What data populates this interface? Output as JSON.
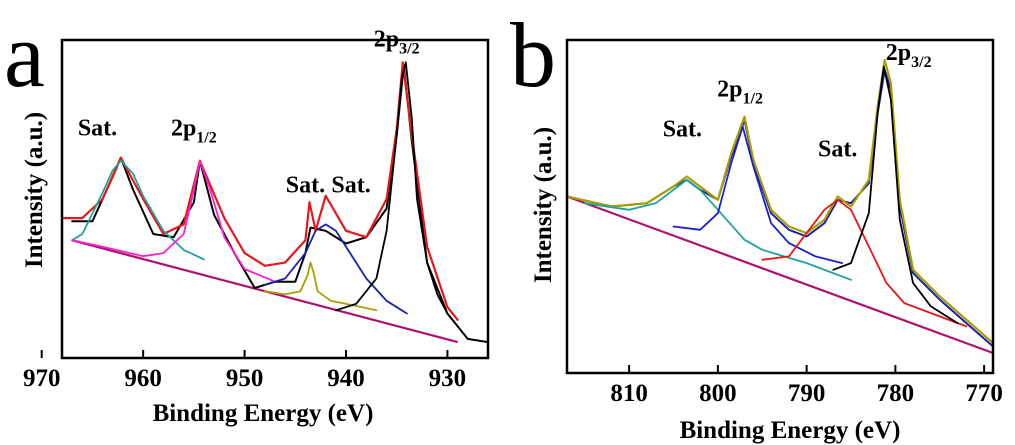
{
  "chart_data": [
    {
      "panel": "a",
      "type": "line",
      "xlabel": "Binding Energy (eV)",
      "ylabel": "Intensity (a.u.)",
      "xlim": [
        968,
        926
      ],
      "x_reversed": true,
      "ylim": [
        0,
        100
      ],
      "xticks": [
        970,
        960,
        950,
        940,
        930
      ],
      "yticks_shown": false,
      "grid": false,
      "legend": "none",
      "baseline": {
        "x": [
          967,
          929
        ],
        "y": [
          37,
          5
        ]
      },
      "series": [
        {
          "color": "#000000",
          "kind": "raw",
          "x": [
            967,
            965,
            963,
            962.2,
            961,
            959,
            957,
            955,
            954.4,
            953,
            951,
            949,
            947,
            945,
            944,
            943.5,
            942,
            940,
            938,
            936,
            935,
            934.3,
            933.5,
            932,
            930,
            928,
            926
          ],
          "y": [
            43,
            43,
            57,
            63,
            53,
            39,
            38,
            49,
            62,
            45,
            33,
            22,
            24,
            24,
            33,
            41,
            40,
            36,
            38,
            47,
            70,
            92,
            68,
            30,
            14,
            6,
            5
          ]
        },
        {
          "color": "#e8171c",
          "kind": "envelope",
          "x": [
            968,
            966,
            964,
            962.2,
            960,
            958,
            956,
            954.4,
            952,
            950,
            948,
            946,
            944,
            943.6,
            943,
            942,
            940,
            938,
            936,
            935,
            934.4,
            933.5,
            932,
            930,
            929
          ],
          "y": [
            44,
            44,
            50,
            63,
            50,
            39,
            42,
            62,
            44,
            33,
            29,
            30,
            37,
            49,
            40,
            51,
            40,
            38,
            50,
            72,
            93,
            70,
            35,
            16,
            12
          ]
        },
        {
          "color": "#21a29a",
          "kind": "Sat.",
          "x": [
            967,
            966,
            964,
            963,
            962.2,
            961,
            960,
            958,
            956,
            954
          ],
          "y": [
            37,
            39,
            52,
            59,
            62,
            58,
            51,
            40,
            34,
            31
          ]
        },
        {
          "color": "#ff1fd0",
          "kind": "2p1/2",
          "x": [
            967,
            964,
            960,
            958,
            956,
            955,
            954.4,
            953.5,
            952,
            950,
            947
          ],
          "y": [
            37,
            35,
            32,
            33,
            39,
            53,
            62,
            54,
            38,
            28,
            24
          ]
        },
        {
          "color": "#a7a000",
          "kind": "Sat.",
          "x": [
            948,
            946,
            944.5,
            943.8,
            943.5,
            943.2,
            942.8,
            941.5,
            940,
            937
          ],
          "y": [
            21,
            20,
            21,
            26,
            30,
            27,
            21,
            18,
            17,
            15
          ]
        },
        {
          "color": "#1a21a8",
          "kind": "Sat.",
          "x": [
            948,
            946,
            944,
            943,
            942,
            941,
            940,
            938,
            936,
            934
          ],
          "y": [
            23,
            25,
            33,
            40,
            42,
            40,
            35,
            25,
            18,
            14
          ]
        },
        {
          "color": "#000000",
          "kind": "2p3/2",
          "x": [
            941,
            939,
            937,
            936,
            935,
            934.5,
            934.1,
            933.5,
            933,
            932,
            931,
            930
          ],
          "y": [
            15,
            17,
            25,
            40,
            70,
            88,
            93,
            75,
            50,
            30,
            20,
            14
          ]
        }
      ],
      "annotations": [
        {
          "text": "Sat.",
          "x": 964.5,
          "y": 70
        },
        {
          "text": "2p",
          "sub": "1/2",
          "x": 955,
          "y": 70
        },
        {
          "text": "Sat.",
          "x": 944,
          "y": 52
        },
        {
          "text": "Sat.",
          "x": 939.5,
          "y": 52
        },
        {
          "text": "2p",
          "sub": "3/2",
          "x": 935,
          "y": 98
        }
      ]
    },
    {
      "panel": "b",
      "type": "line",
      "xlabel": "Binding Energy (eV)",
      "ylabel": "Intensity (a.u.)",
      "xlim": [
        817,
        769
      ],
      "x_reversed": true,
      "ylim": [
        0,
        100
      ],
      "xticks": [
        810,
        800,
        790,
        780,
        770
      ],
      "yticks_shown": false,
      "grid": false,
      "legend": "none",
      "baseline": {
        "x": [
          817,
          769
        ],
        "y": [
          53,
          6
        ]
      },
      "series": [
        {
          "color": "#1a21a8",
          "kind": "raw",
          "x": [
            817,
            812,
            808,
            805,
            803.5,
            802,
            800,
            798.5,
            797,
            796,
            794,
            792,
            790,
            788,
            786.5,
            785,
            783,
            782,
            781.2,
            780.5,
            779.5,
            778,
            775,
            772,
            769
          ],
          "y": [
            53,
            50,
            51,
            56,
            58,
            55,
            52,
            65,
            76,
            63,
            48,
            43,
            41,
            45,
            52,
            51,
            57,
            78,
            91,
            85,
            50,
            30,
            22,
            15,
            8
          ]
        },
        {
          "color": "#a7a000",
          "kind": "envelope",
          "x": [
            817,
            812,
            808,
            805,
            803.5,
            802,
            800,
            798.5,
            797,
            796,
            794,
            792,
            790,
            788,
            786.5,
            785,
            783,
            782,
            781.2,
            780.5,
            779.5,
            778,
            775,
            772,
            769
          ],
          "y": [
            53,
            50,
            51,
            56,
            59,
            56,
            52,
            66,
            77,
            64,
            49,
            44,
            42,
            46,
            53,
            50,
            58,
            80,
            94,
            87,
            52,
            31,
            23,
            16,
            9
          ]
        },
        {
          "color": "#21a29a",
          "kind": "Sat.",
          "x": [
            815,
            810,
            807,
            805,
            803.5,
            802,
            800,
            797,
            795,
            790,
            785
          ],
          "y": [
            51,
            49,
            51,
            55,
            58,
            55,
            49,
            40,
            37,
            33,
            28
          ]
        },
        {
          "color": "#1a21cc",
          "kind": "2p1/2",
          "x": [
            805,
            802,
            800,
            798.5,
            797.2,
            796,
            794,
            792,
            789,
            786
          ],
          "y": [
            44,
            43,
            48,
            63,
            74,
            62,
            45,
            39,
            35,
            33
          ]
        },
        {
          "color": "#e8171c",
          "kind": "Sat.",
          "x": [
            795,
            792,
            790,
            788,
            786.5,
            785,
            783,
            781,
            779,
            776,
            772
          ],
          "y": [
            34,
            35,
            42,
            49,
            52,
            49,
            38,
            27,
            21,
            18,
            14
          ]
        },
        {
          "color": "#000000",
          "kind": "2p3/2",
          "x": [
            787,
            785,
            783,
            782,
            781.3,
            780.5,
            779.5,
            778,
            776,
            773
          ],
          "y": [
            31,
            33,
            48,
            78,
            92,
            82,
            46,
            27,
            20,
            15
          ]
        }
      ],
      "annotations": [
        {
          "text": "Sat.",
          "x": 804,
          "y": 71
        },
        {
          "text": "2p",
          "sub": "1/2",
          "x": 797.5,
          "y": 83
        },
        {
          "text": "Sat.",
          "x": 786.5,
          "y": 65
        },
        {
          "text": "2p",
          "sub": "3/2",
          "x": 778.5,
          "y": 94
        }
      ]
    }
  ],
  "panels": [
    {
      "letter": "a",
      "xlabel": "Binding Energy (eV)",
      "ylabel": "Intensity (a.u.)"
    },
    {
      "letter": "b",
      "xlabel": "Binding Energy (eV)",
      "ylabel": "Intensity (a.u.)"
    }
  ]
}
